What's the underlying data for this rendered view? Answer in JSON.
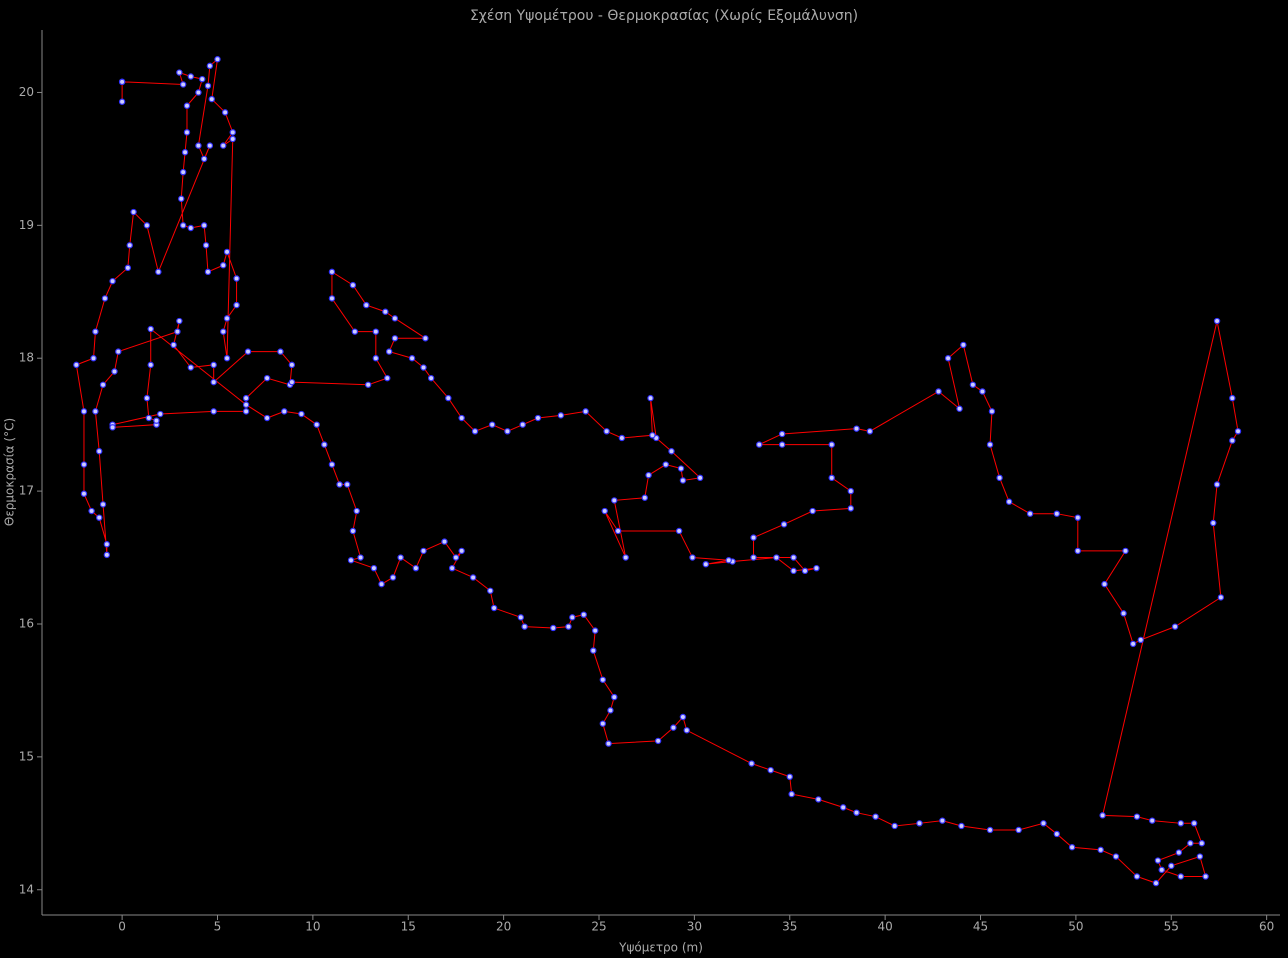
{
  "chart_data": {
    "type": "line",
    "title": "Σχέση Υψομέτρου - Θερμοκρασίας (Χωρίς Εξομάλυνση)",
    "x_label": "Υψόμετρο (m)",
    "y_label": "Θερμοκρασία (°C)",
    "xlim": [
      -4.2,
      60.7
    ],
    "ylim": [
      13.81,
      20.47
    ],
    "xticks": [
      0,
      5,
      10,
      15,
      20,
      25,
      30,
      35,
      40,
      45,
      50,
      55,
      60
    ],
    "yticks": [
      14,
      15,
      16,
      17,
      18,
      19,
      20
    ],
    "line_color": "#ff0000",
    "marker_color": "#3333ff",
    "marker_fill": "#ccccff",
    "x": [
      0,
      0,
      0,
      3.2,
      3.0,
      3.6,
      4.2,
      4.0,
      3.4,
      3.4,
      3.3,
      3.2,
      3.1,
      3.2,
      3.6,
      4.3,
      4.4,
      4.5,
      5.3,
      5.5,
      6.0,
      6.0,
      5.5,
      5.3,
      5.5,
      5.8,
      5.3,
      5.8,
      5.4,
      4.7,
      5.0,
      4.6,
      4.5,
      4.0,
      4.3,
      4.6,
      1.9,
      1.3,
      0.6,
      0.4,
      0.3,
      -0.5,
      -0.9,
      -1.4,
      -1.5,
      -2.4,
      -2.0,
      -2.0,
      -2.0,
      -1.6,
      -1.2,
      -0.8,
      -0.8,
      -1.0,
      -1.2,
      -1.4,
      -1.0,
      -0.4,
      -0.2,
      2.9,
      3.0,
      2.7,
      3.6,
      4.8,
      4.8,
      6.6,
      8.3,
      8.9,
      8.8,
      7.6,
      6.5,
      6.5,
      4.8,
      2.0,
      -0.5,
      -0.5,
      1.8,
      1.8,
      1.4,
      1.3,
      1.5,
      1.5,
      6.5,
      7.6,
      8.5,
      9.4,
      10.2,
      10.6,
      11.0,
      11.4,
      11.8,
      12.3,
      12.1,
      12.5,
      12.0,
      13.2,
      13.6,
      14.2,
      14.6,
      15.4,
      15.8,
      16.9,
      17.5,
      17.8,
      17.3,
      18.4,
      19.3,
      19.5,
      20.9,
      21.1,
      22.6,
      23.4,
      23.6,
      24.2,
      24.8,
      24.7,
      25.2,
      25.8,
      25.6,
      25.2,
      25.5,
      28.1,
      28.9,
      29.4,
      29.6,
      33.0,
      34.0,
      35.0,
      35.1,
      36.5,
      37.8,
      38.5,
      39.5,
      40.5,
      41.8,
      43.0,
      44.0,
      45.5,
      47.0,
      48.3,
      49.0,
      49.8,
      51.3,
      52.1,
      53.2,
      54.2,
      55.0,
      56.5,
      56.8,
      55.5,
      54.5,
      54.3,
      55.4,
      56.0,
      56.6,
      56.2,
      55.5,
      54.0,
      53.2,
      51.4,
      57.4,
      58.2,
      58.5,
      58.2,
      57.4,
      57.2,
      57.6,
      55.2,
      53.4,
      53.0,
      52.5,
      51.5,
      52.6,
      50.1,
      50.1,
      49.0,
      47.6,
      46.5,
      46.0,
      45.5,
      45.6,
      45.1,
      44.6,
      44.1,
      43.3,
      43.9,
      42.8,
      39.2,
      38.5,
      34.6,
      33.4,
      34.6,
      37.2,
      37.2,
      38.2,
      38.2,
      36.2,
      34.7,
      33.1,
      33.1,
      35.2,
      35.8,
      36.4,
      35.2,
      34.3,
      32.0,
      30.6,
      31.8,
      29.9,
      29.2,
      26.0,
      25.3,
      26.4,
      25.8,
      27.4,
      27.6,
      28.5,
      29.3,
      29.4,
      30.3,
      28.8,
      28.0,
      27.7,
      27.8,
      26.2,
      25.4,
      24.3,
      23.0,
      21.8,
      21.0,
      20.2,
      19.4,
      18.5,
      17.8,
      17.1,
      16.2,
      15.8,
      15.2,
      14.0,
      14.3,
      15.9,
      14.3,
      13.8,
      12.8,
      12.1,
      11.0,
      11.0,
      12.2,
      13.3,
      13.3,
      13.9,
      12.9,
      8.9
    ],
    "values": [
      20.08,
      19.93,
      20.08,
      20.06,
      20.15,
      20.12,
      20.1,
      20.0,
      19.9,
      19.7,
      19.55,
      19.4,
      19.2,
      19.0,
      18.98,
      19.0,
      18.85,
      18.65,
      18.7,
      18.8,
      18.6,
      18.4,
      18.3,
      18.2,
      18.0,
      19.65,
      19.6,
      19.7,
      19.85,
      19.95,
      20.25,
      20.2,
      20.05,
      19.6,
      19.5,
      19.6,
      18.65,
      19.0,
      19.1,
      18.85,
      18.68,
      18.58,
      18.45,
      18.2,
      18.0,
      17.95,
      17.6,
      17.2,
      16.98,
      16.85,
      16.8,
      16.6,
      16.52,
      16.9,
      17.3,
      17.6,
      17.8,
      17.9,
      18.05,
      18.2,
      18.28,
      18.1,
      17.93,
      17.95,
      17.82,
      18.05,
      18.05,
      17.95,
      17.8,
      17.85,
      17.7,
      17.6,
      17.6,
      17.58,
      17.5,
      17.48,
      17.5,
      17.53,
      17.55,
      17.7,
      17.95,
      18.22,
      17.65,
      17.55,
      17.6,
      17.58,
      17.5,
      17.35,
      17.2,
      17.05,
      17.05,
      16.85,
      16.7,
      16.5,
      16.48,
      16.42,
      16.3,
      16.35,
      16.5,
      16.42,
      16.55,
      16.62,
      16.5,
      16.55,
      16.42,
      16.35,
      16.25,
      16.12,
      16.05,
      15.98,
      15.97,
      15.98,
      16.05,
      16.07,
      15.95,
      15.8,
      15.58,
      15.45,
      15.35,
      15.25,
      15.1,
      15.12,
      15.22,
      15.3,
      15.2,
      14.95,
      14.9,
      14.85,
      14.72,
      14.68,
      14.62,
      14.58,
      14.55,
      14.48,
      14.5,
      14.52,
      14.48,
      14.45,
      14.45,
      14.5,
      14.42,
      14.32,
      14.3,
      14.25,
      14.1,
      14.05,
      14.18,
      14.25,
      14.1,
      14.1,
      14.15,
      14.22,
      14.28,
      14.35,
      14.35,
      14.5,
      14.5,
      14.52,
      14.55,
      14.56,
      18.28,
      17.7,
      17.45,
      17.38,
      17.05,
      16.76,
      16.2,
      15.98,
      15.88,
      15.85,
      16.08,
      16.3,
      16.55,
      16.55,
      16.8,
      16.83,
      16.83,
      16.92,
      17.1,
      17.35,
      17.6,
      17.75,
      17.8,
      18.1,
      18.0,
      17.62,
      17.75,
      17.45,
      17.47,
      17.43,
      17.35,
      17.35,
      17.35,
      17.1,
      17.0,
      16.87,
      16.85,
      16.75,
      16.65,
      16.5,
      16.5,
      16.4,
      16.42,
      16.4,
      16.5,
      16.47,
      16.45,
      16.48,
      16.5,
      16.7,
      16.7,
      16.85,
      16.5,
      16.93,
      16.95,
      17.12,
      17.2,
      17.17,
      17.08,
      17.1,
      17.3,
      17.4,
      17.7,
      17.42,
      17.4,
      17.45,
      17.6,
      17.57,
      17.55,
      17.5,
      17.45,
      17.5,
      17.45,
      17.55,
      17.7,
      17.85,
      17.93,
      18.0,
      18.05,
      18.15,
      18.15,
      18.3,
      18.35,
      18.4,
      18.55,
      18.65,
      18.45,
      18.2,
      18.2,
      18.0,
      17.85,
      17.8,
      17.82
    ]
  }
}
